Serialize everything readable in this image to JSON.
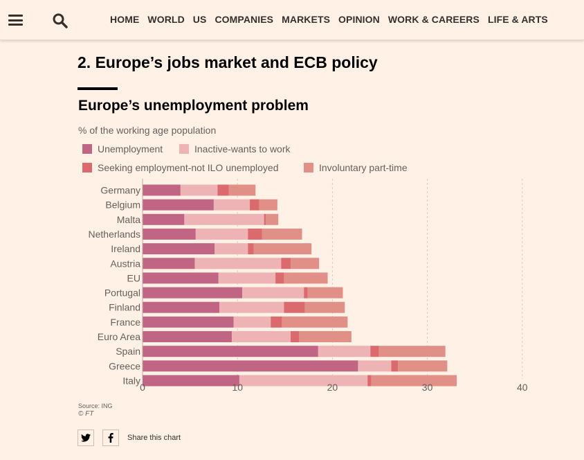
{
  "nav": {
    "items": [
      "HOME",
      "WORLD",
      "US",
      "COMPANIES",
      "MARKETS",
      "OPINION",
      "WORK & CAREERS",
      "LIFE & ARTS"
    ]
  },
  "article": {
    "section_title": "2. Europe’s jobs market and ECB policy"
  },
  "share": {
    "label": "Share this chart"
  },
  "chart_data": {
    "type": "bar",
    "orientation": "horizontal",
    "stacked": true,
    "title": "Europe’s unemployment problem",
    "subtitle": "% of the working age population",
    "source": "Source: ING",
    "credit": "© FT",
    "xlim": [
      0,
      40
    ],
    "xticks": [
      0,
      10,
      20,
      30,
      40
    ],
    "grid": true,
    "legend_position": "top",
    "categories": [
      "Germany",
      "Belgium",
      "Malta",
      "Netherlands",
      "Ireland",
      "Austria",
      "EU",
      "Portugal",
      "Finland",
      "France",
      "Euro Area",
      "Spain",
      "Greece",
      "Italy"
    ],
    "series": [
      {
        "name": "Unemployment",
        "color": "#c06584",
        "values": [
          4.0,
          7.5,
          4.4,
          5.6,
          7.6,
          5.5,
          8.0,
          10.5,
          8.1,
          9.6,
          9.4,
          18.5,
          22.7,
          10.2
        ]
      },
      {
        "name": "Inactive-wants to work",
        "color": "#edb3b5",
        "values": [
          3.9,
          3.8,
          8.4,
          5.5,
          3.5,
          9.1,
          6.0,
          6.5,
          6.8,
          3.9,
          6.2,
          5.5,
          3.5,
          13.5
        ]
      },
      {
        "name": "Seeking employment-not ILO unemployed",
        "color": "#da6a6e",
        "values": [
          1.2,
          1.0,
          0.2,
          1.5,
          0.6,
          1.0,
          0.9,
          0.4,
          2.2,
          1.2,
          0.9,
          0.9,
          0.7,
          0.4
        ]
      },
      {
        "name": "Involuntary part-time",
        "color": "#e19087",
        "values": [
          2.8,
          1.9,
          1.3,
          4.2,
          6.1,
          3.0,
          4.6,
          3.7,
          4.2,
          6.9,
          5.5,
          7.0,
          5.2,
          9.0
        ]
      }
    ]
  }
}
